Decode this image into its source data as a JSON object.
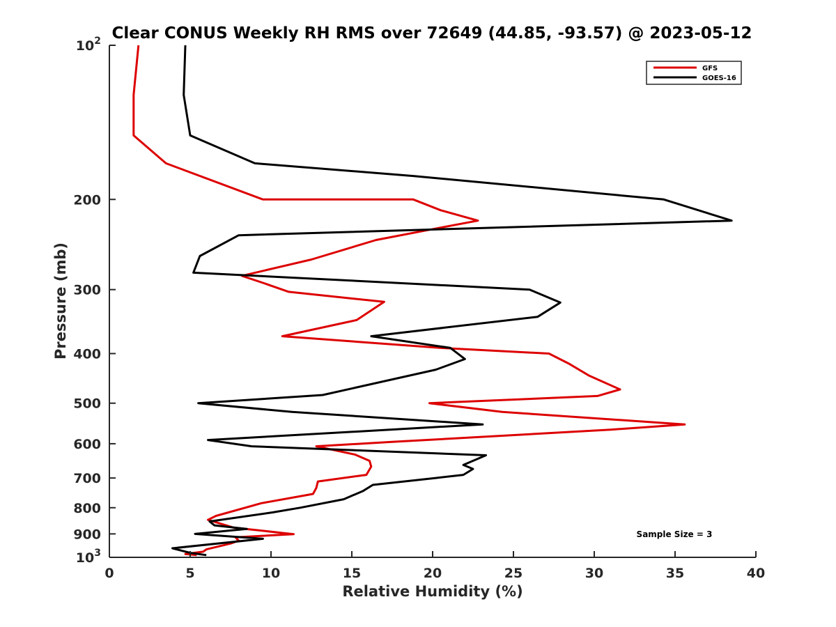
{
  "chart_data": {
    "type": "line",
    "title": "Clear CONUS Weekly RH RMS over 72649 (44.85, -93.57) @ 2023-05-12",
    "xlabel": "Relative Humidity (%)",
    "ylabel": "Pressure (mb)",
    "xlim": [
      0,
      40
    ],
    "ylim": [
      100,
      1000
    ],
    "yscale": "log",
    "y_reversed": true,
    "xticks": [
      0,
      5,
      10,
      15,
      20,
      25,
      30,
      35,
      40
    ],
    "yticks": [
      {
        "value": 100,
        "base": "10",
        "exp": "2"
      },
      {
        "value": 200,
        "label": "200"
      },
      {
        "value": 300,
        "label": "300"
      },
      {
        "value": 400,
        "label": "400"
      },
      {
        "value": 500,
        "label": "500"
      },
      {
        "value": 600,
        "label": "600"
      },
      {
        "value": 700,
        "label": "700"
      },
      {
        "value": 800,
        "label": "800"
      },
      {
        "value": 900,
        "label": "900"
      },
      {
        "value": 1000,
        "base": "10",
        "exp": "3"
      }
    ],
    "grid": false,
    "legend_position": "top-right",
    "annotation": "Sample Size = 3",
    "series": [
      {
        "name": "GFS",
        "color": "#dd0000",
        "points": [
          [
            1.8,
            100
          ],
          [
            1.5,
            125
          ],
          [
            1.5,
            150
          ],
          [
            1.5,
            150
          ],
          [
            3.5,
            170
          ],
          [
            9.5,
            200
          ],
          [
            18.8,
            200
          ],
          [
            20.5,
            210
          ],
          [
            22.8,
            220
          ],
          [
            20.5,
            227
          ],
          [
            16.5,
            240
          ],
          [
            12.5,
            262
          ],
          [
            8.2,
            282
          ],
          [
            9.5,
            291
          ],
          [
            11.1,
            303
          ],
          [
            17.0,
            317
          ],
          [
            15.3,
            344
          ],
          [
            10.7,
            370
          ],
          [
            20.5,
            390
          ],
          [
            27.2,
            400
          ],
          [
            28.4,
            418
          ],
          [
            29.7,
            442
          ],
          [
            31.6,
            470
          ],
          [
            30.2,
            484
          ],
          [
            19.8,
            500
          ],
          [
            24.3,
            520
          ],
          [
            35.6,
            550
          ],
          [
            31.1,
            563
          ],
          [
            17.5,
            595
          ],
          [
            12.8,
            607
          ],
          [
            15.2,
            630
          ],
          [
            16.1,
            648
          ],
          [
            16.2,
            665
          ],
          [
            15.9,
            690
          ],
          [
            12.9,
            711
          ],
          [
            12.8,
            732
          ],
          [
            12.6,
            752
          ],
          [
            9.4,
            784
          ],
          [
            6.6,
            830
          ],
          [
            6.1,
            845
          ],
          [
            7.7,
            875
          ],
          [
            11.4,
            901
          ],
          [
            7.8,
            914
          ],
          [
            8.0,
            928
          ],
          [
            7.5,
            940
          ],
          [
            6.0,
            965
          ],
          [
            5.8,
            975
          ],
          [
            4.7,
            985
          ],
          [
            5.4,
            990
          ]
        ]
      },
      {
        "name": "GOES-16",
        "color": "#000000",
        "points": [
          [
            4.7,
            100
          ],
          [
            4.6,
            125
          ],
          [
            5.0,
            150
          ],
          [
            9.0,
            170
          ],
          [
            18.8,
            180
          ],
          [
            34.3,
            200
          ],
          [
            38.5,
            220
          ],
          [
            8.0,
            235
          ],
          [
            5.6,
            258
          ],
          [
            5.2,
            278
          ],
          [
            26.0,
            300
          ],
          [
            27.9,
            318
          ],
          [
            26.5,
            339
          ],
          [
            16.2,
            370
          ],
          [
            21.1,
            390
          ],
          [
            22.0,
            410
          ],
          [
            20.2,
            430
          ],
          [
            13.2,
            482
          ],
          [
            5.5,
            500
          ],
          [
            11.3,
            520
          ],
          [
            23.1,
            550
          ],
          [
            6.1,
            590
          ],
          [
            8.8,
            607
          ],
          [
            23.3,
            632
          ],
          [
            21.9,
            660
          ],
          [
            22.5,
            672
          ],
          [
            21.9,
            690
          ],
          [
            20.2,
            700
          ],
          [
            16.3,
            722
          ],
          [
            15.7,
            742
          ],
          [
            14.5,
            770
          ],
          [
            11.8,
            800
          ],
          [
            10.1,
            817
          ],
          [
            6.2,
            851
          ],
          [
            6.5,
            866
          ],
          [
            8.5,
            880
          ],
          [
            5.3,
            900
          ],
          [
            9.5,
            920
          ],
          [
            3.9,
            960
          ],
          [
            5.0,
            980
          ],
          [
            6.0,
            990
          ]
        ]
      }
    ]
  }
}
